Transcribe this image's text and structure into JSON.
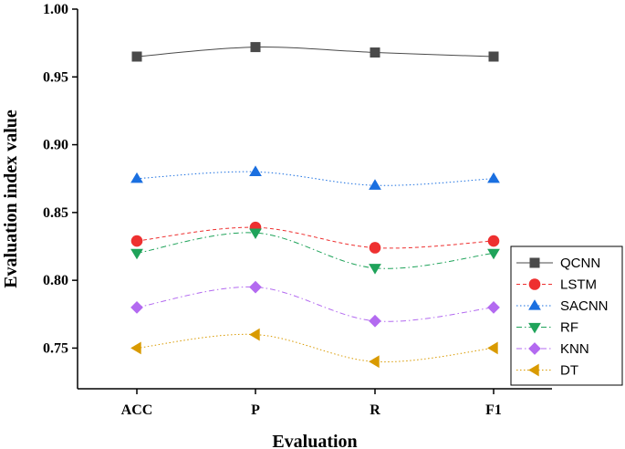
{
  "chart_data": {
    "type": "line",
    "title": "",
    "xlabel": "Evaluation",
    "ylabel": "Evaluation index value",
    "categories": [
      "ACC",
      "P",
      "R",
      "F1"
    ],
    "ylim": [
      0.72,
      1.0
    ],
    "yticks": [
      "0.75",
      "0.80",
      "0.85",
      "0.90",
      "0.95",
      "1.00"
    ],
    "legend_position": "right",
    "grid": false,
    "series": [
      {
        "name": "QCNN",
        "values": [
          0.965,
          0.972,
          0.968,
          0.965
        ],
        "color": "#4a4a4a",
        "marker": "square",
        "dash": "solid"
      },
      {
        "name": "LSTM",
        "values": [
          0.829,
          0.839,
          0.824,
          0.829
        ],
        "color": "#ee3030",
        "marker": "circle",
        "dash": "dash"
      },
      {
        "name": "SACNN",
        "values": [
          0.875,
          0.88,
          0.87,
          0.875
        ],
        "color": "#1a6fe0",
        "marker": "triangle-up",
        "dash": "dot"
      },
      {
        "name": "RF",
        "values": [
          0.82,
          0.835,
          0.809,
          0.82
        ],
        "color": "#1fa35a",
        "marker": "triangle-down",
        "dash": "dashdot"
      },
      {
        "name": "KNN",
        "values": [
          0.78,
          0.795,
          0.77,
          0.78
        ],
        "color": "#b36af0",
        "marker": "diamond",
        "dash": "dashdot"
      },
      {
        "name": "DT",
        "values": [
          0.75,
          0.76,
          0.74,
          0.75
        ],
        "color": "#d99a00",
        "marker": "triangle-left",
        "dash": "dot"
      }
    ]
  }
}
